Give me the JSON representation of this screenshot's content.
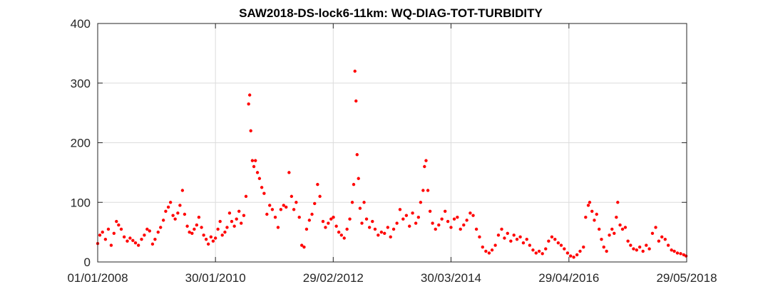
{
  "chart_data": {
    "type": "scatter",
    "title": "SAW2018-DS-lock6-11km: WQ-DIAG-TOT-TURBIDITY",
    "xlabel": "",
    "ylabel": "",
    "x_type": "date",
    "xlim": [
      "2008-01-01",
      "2018-05-29"
    ],
    "ylim": [
      0,
      400
    ],
    "x_ticks": [
      "2008-01-01",
      "2010-01-30",
      "2012-02-29",
      "2014-03-30",
      "2016-04-29",
      "2018-05-29"
    ],
    "x_tick_labels": [
      "01/01/2008",
      "30/01/2010",
      "29/02/2012",
      "30/03/2014",
      "29/04/2016",
      "29/05/2018"
    ],
    "y_ticks": [
      0,
      100,
      200,
      300,
      400
    ],
    "y_tick_labels": [
      "0",
      "100",
      "200",
      "300",
      "400"
    ],
    "grid": true,
    "marker_color": "#ff0000",
    "series": [
      {
        "points": [
          [
            "2008-01-01",
            31
          ],
          [
            "2008-01-15",
            45
          ],
          [
            "2008-02-01",
            50
          ],
          [
            "2008-02-20",
            38
          ],
          [
            "2008-03-10",
            55
          ],
          [
            "2008-03-28",
            28
          ],
          [
            "2008-04-15",
            48
          ],
          [
            "2008-05-01",
            68
          ],
          [
            "2008-05-15",
            62
          ],
          [
            "2008-06-01",
            55
          ],
          [
            "2008-06-20",
            42
          ],
          [
            "2008-07-10",
            35
          ],
          [
            "2008-07-28",
            40
          ],
          [
            "2008-08-15",
            36
          ],
          [
            "2008-09-01",
            32
          ],
          [
            "2008-09-20",
            28
          ],
          [
            "2008-10-10",
            38
          ],
          [
            "2008-10-28",
            45
          ],
          [
            "2008-11-15",
            55
          ],
          [
            "2008-12-01",
            52
          ],
          [
            "2008-12-20",
            30
          ],
          [
            "2009-01-05",
            38
          ],
          [
            "2009-01-25",
            50
          ],
          [
            "2009-02-10",
            58
          ],
          [
            "2009-02-28",
            70
          ],
          [
            "2009-03-15",
            85
          ],
          [
            "2009-04-01",
            92
          ],
          [
            "2009-04-15",
            100
          ],
          [
            "2009-05-01",
            78
          ],
          [
            "2009-05-15",
            72
          ],
          [
            "2009-06-01",
            82
          ],
          [
            "2009-06-15",
            95
          ],
          [
            "2009-07-01",
            120
          ],
          [
            "2009-07-15",
            80
          ],
          [
            "2009-08-01",
            60
          ],
          [
            "2009-08-15",
            50
          ],
          [
            "2009-09-01",
            48
          ],
          [
            "2009-09-15",
            55
          ],
          [
            "2009-10-01",
            62
          ],
          [
            "2009-10-15",
            75
          ],
          [
            "2009-11-01",
            58
          ],
          [
            "2009-11-15",
            45
          ],
          [
            "2009-12-01",
            38
          ],
          [
            "2009-12-15",
            30
          ],
          [
            "2010-01-01",
            42
          ],
          [
            "2010-01-15",
            35
          ],
          [
            "2010-01-30",
            40
          ],
          [
            "2010-02-15",
            55
          ],
          [
            "2010-03-01",
            68
          ],
          [
            "2010-03-15",
            45
          ],
          [
            "2010-04-01",
            50
          ],
          [
            "2010-04-15",
            58
          ],
          [
            "2010-05-01",
            82
          ],
          [
            "2010-05-15",
            68
          ],
          [
            "2010-06-01",
            60
          ],
          [
            "2010-06-15",
            72
          ],
          [
            "2010-07-01",
            85
          ],
          [
            "2010-07-15",
            65
          ],
          [
            "2010-08-01",
            78
          ],
          [
            "2010-08-15",
            110
          ],
          [
            "2010-09-01",
            265
          ],
          [
            "2010-09-08",
            280
          ],
          [
            "2010-09-15",
            220
          ],
          [
            "2010-09-25",
            170
          ],
          [
            "2010-10-05",
            160
          ],
          [
            "2010-10-15",
            170
          ],
          [
            "2010-10-28",
            150
          ],
          [
            "2010-11-10",
            140
          ],
          [
            "2010-11-25",
            125
          ],
          [
            "2010-12-10",
            115
          ],
          [
            "2010-12-28",
            80
          ],
          [
            "2011-01-15",
            95
          ],
          [
            "2011-02-01",
            88
          ],
          [
            "2011-02-20",
            75
          ],
          [
            "2011-03-10",
            58
          ],
          [
            "2011-03-28",
            88
          ],
          [
            "2011-04-15",
            95
          ],
          [
            "2011-05-01",
            92
          ],
          [
            "2011-05-20",
            150
          ],
          [
            "2011-06-05",
            110
          ],
          [
            "2011-06-20",
            88
          ],
          [
            "2011-07-05",
            100
          ],
          [
            "2011-07-25",
            75
          ],
          [
            "2011-08-10",
            28
          ],
          [
            "2011-08-25",
            25
          ],
          [
            "2011-09-10",
            55
          ],
          [
            "2011-09-28",
            70
          ],
          [
            "2011-10-15",
            80
          ],
          [
            "2011-11-01",
            98
          ],
          [
            "2011-11-20",
            130
          ],
          [
            "2011-12-05",
            110
          ],
          [
            "2011-12-25",
            68
          ],
          [
            "2012-01-10",
            58
          ],
          [
            "2012-01-28",
            65
          ],
          [
            "2012-02-15",
            72
          ],
          [
            "2012-03-01",
            75
          ],
          [
            "2012-03-20",
            60
          ],
          [
            "2012-04-05",
            50
          ],
          [
            "2012-04-22",
            45
          ],
          [
            "2012-05-10",
            40
          ],
          [
            "2012-05-28",
            55
          ],
          [
            "2012-06-15",
            72
          ],
          [
            "2012-07-01",
            100
          ],
          [
            "2012-07-10",
            130
          ],
          [
            "2012-07-18",
            320
          ],
          [
            "2012-07-25",
            270
          ],
          [
            "2012-08-01",
            180
          ],
          [
            "2012-08-10",
            140
          ],
          [
            "2012-08-20",
            90
          ],
          [
            "2012-09-01",
            65
          ],
          [
            "2012-09-15",
            100
          ],
          [
            "2012-10-01",
            72
          ],
          [
            "2012-10-20",
            58
          ],
          [
            "2012-11-08",
            68
          ],
          [
            "2012-11-25",
            55
          ],
          [
            "2012-12-15",
            45
          ],
          [
            "2013-01-05",
            50
          ],
          [
            "2013-01-25",
            48
          ],
          [
            "2013-02-15",
            58
          ],
          [
            "2013-03-05",
            42
          ],
          [
            "2013-03-25",
            55
          ],
          [
            "2013-04-15",
            65
          ],
          [
            "2013-05-05",
            88
          ],
          [
            "2013-05-25",
            72
          ],
          [
            "2013-06-15",
            78
          ],
          [
            "2013-07-05",
            60
          ],
          [
            "2013-07-25",
            82
          ],
          [
            "2013-08-15",
            65
          ],
          [
            "2013-09-01",
            75
          ],
          [
            "2013-09-15",
            100
          ],
          [
            "2013-10-01",
            120
          ],
          [
            "2013-10-10",
            160
          ],
          [
            "2013-10-20",
            170
          ],
          [
            "2013-11-01",
            120
          ],
          [
            "2013-11-15",
            85
          ],
          [
            "2013-12-01",
            65
          ],
          [
            "2013-12-20",
            55
          ],
          [
            "2014-01-10",
            62
          ],
          [
            "2014-01-30",
            72
          ],
          [
            "2014-02-20",
            85
          ],
          [
            "2014-03-10",
            68
          ],
          [
            "2014-03-30",
            58
          ],
          [
            "2014-04-20",
            72
          ],
          [
            "2014-05-10",
            75
          ],
          [
            "2014-05-30",
            55
          ],
          [
            "2014-06-20",
            62
          ],
          [
            "2014-07-10",
            70
          ],
          [
            "2014-08-01",
            82
          ],
          [
            "2014-08-20",
            78
          ],
          [
            "2014-09-10",
            55
          ],
          [
            "2014-09-30",
            42
          ],
          [
            "2014-10-20",
            25
          ],
          [
            "2014-11-10",
            18
          ],
          [
            "2014-12-01",
            15
          ],
          [
            "2014-12-20",
            20
          ],
          [
            "2015-01-10",
            28
          ],
          [
            "2015-01-30",
            45
          ],
          [
            "2015-02-20",
            55
          ],
          [
            "2015-03-10",
            40
          ],
          [
            "2015-03-30",
            48
          ],
          [
            "2015-04-20",
            35
          ],
          [
            "2015-05-10",
            45
          ],
          [
            "2015-05-30",
            38
          ],
          [
            "2015-06-20",
            42
          ],
          [
            "2015-07-10",
            32
          ],
          [
            "2015-08-01",
            38
          ],
          [
            "2015-08-20",
            28
          ],
          [
            "2015-09-10",
            20
          ],
          [
            "2015-09-30",
            15
          ],
          [
            "2015-10-20",
            18
          ],
          [
            "2015-11-10",
            14
          ],
          [
            "2015-12-01",
            22
          ],
          [
            "2015-12-20",
            35
          ],
          [
            "2016-01-10",
            42
          ],
          [
            "2016-01-30",
            38
          ],
          [
            "2016-02-20",
            32
          ],
          [
            "2016-03-10",
            28
          ],
          [
            "2016-03-30",
            22
          ],
          [
            "2016-04-20",
            15
          ],
          [
            "2016-05-10",
            10
          ],
          [
            "2016-05-30",
            8
          ],
          [
            "2016-06-20",
            12
          ],
          [
            "2016-07-10",
            18
          ],
          [
            "2016-08-01",
            25
          ],
          [
            "2016-08-15",
            75
          ],
          [
            "2016-09-01",
            95
          ],
          [
            "2016-09-10",
            100
          ],
          [
            "2016-09-25",
            85
          ],
          [
            "2016-10-10",
            70
          ],
          [
            "2016-10-25",
            80
          ],
          [
            "2016-11-10",
            55
          ],
          [
            "2016-11-25",
            38
          ],
          [
            "2016-12-10",
            25
          ],
          [
            "2016-12-28",
            18
          ],
          [
            "2017-01-15",
            45
          ],
          [
            "2017-02-01",
            55
          ],
          [
            "2017-02-15",
            48
          ],
          [
            "2017-03-01",
            75
          ],
          [
            "2017-03-10",
            100
          ],
          [
            "2017-03-25",
            62
          ],
          [
            "2017-04-10",
            55
          ],
          [
            "2017-04-28",
            58
          ],
          [
            "2017-05-15",
            35
          ],
          [
            "2017-06-01",
            28
          ],
          [
            "2017-06-20",
            22
          ],
          [
            "2017-07-10",
            20
          ],
          [
            "2017-07-30",
            25
          ],
          [
            "2017-08-20",
            18
          ],
          [
            "2017-09-10",
            28
          ],
          [
            "2017-09-30",
            22
          ],
          [
            "2017-10-20",
            48
          ],
          [
            "2017-11-10",
            58
          ],
          [
            "2017-11-30",
            35
          ],
          [
            "2017-12-20",
            42
          ],
          [
            "2018-01-10",
            38
          ],
          [
            "2018-01-30",
            28
          ],
          [
            "2018-02-20",
            20
          ],
          [
            "2018-03-10",
            18
          ],
          [
            "2018-03-30",
            15
          ],
          [
            "2018-04-20",
            14
          ],
          [
            "2018-05-10",
            12
          ],
          [
            "2018-05-25",
            10
          ]
        ]
      }
    ]
  }
}
